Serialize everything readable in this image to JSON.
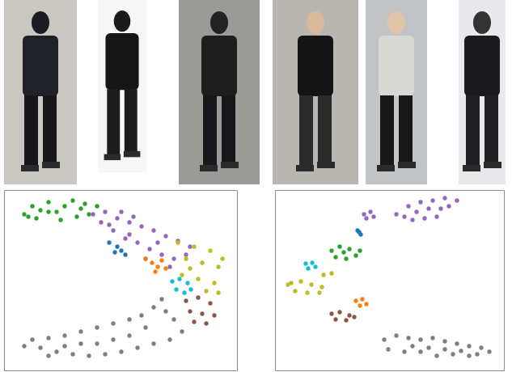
{
  "chart_data": [
    {
      "type": "scatter",
      "xlim": [
        0,
        288
      ],
      "ylim": [
        0,
        223
      ],
      "tick_labels": false,
      "marker": "circle",
      "series": [
        {
          "color": "#2ca02c",
          "x": [
            25,
            35,
            45,
            55,
            65,
            75,
            85,
            95,
            105,
            115,
            40,
            70,
            90,
            55,
            30,
            100
          ],
          "values": [
            193,
            203,
            198,
            208,
            196,
            203,
            210,
            200,
            193,
            203,
            188,
            186,
            190,
            196,
            190,
            206
          ]
        },
        {
          "color": "#9467bd",
          "x": [
            110,
            125,
            140,
            155,
            170,
            185,
            200,
            215,
            230,
            120,
            135,
            150,
            165,
            180,
            195,
            210,
            145,
            160,
            190,
            205,
            175,
            225,
            130,
            155
          ],
          "values": [
            193,
            196,
            188,
            183,
            178,
            173,
            166,
            160,
            153,
            183,
            173,
            163,
            158,
            150,
            143,
            138,
            196,
            190,
            158,
            128,
            138,
            143,
            180,
            168
          ]
        },
        {
          "color": "#1f77b4",
          "x": [
            130,
            140,
            145,
            150,
            137
          ],
          "values": [
            158,
            153,
            148,
            143,
            146
          ]
        },
        {
          "color": "#ff7f0e",
          "x": [
            175,
            183,
            190,
            195,
            187,
            200
          ],
          "values": [
            138,
            133,
            128,
            136,
            122,
            126
          ]
        },
        {
          "color": "#bcbd22",
          "x": [
            215,
            235,
            255,
            225,
            245,
            265,
            220,
            240,
            260,
            270,
            250,
            265,
            230
          ],
          "values": [
            158,
            153,
            148,
            138,
            133,
            128,
            118,
            113,
            108,
            138,
            98,
            96,
            126
          ]
        },
        {
          "color": "#17becf",
          "x": [
            208,
            217,
            227,
            213,
            223,
            231
          ],
          "values": [
            110,
            113,
            108,
            100,
            96,
            100
          ]
        },
        {
          "color": "#8c564b",
          "x": [
            225,
            240,
            255,
            230,
            245,
            260,
            235,
            250
          ],
          "values": [
            86,
            90,
            83,
            73,
            70,
            68,
            60,
            58
          ]
        },
        {
          "color": "#7f7f7f",
          "x": [
            195,
            185,
            170,
            155,
            135,
            115,
            95,
            75,
            55,
            35,
            25,
            45,
            65,
            85,
            105,
            125,
            145,
            165,
            185,
            205,
            220,
            210,
            200,
            115,
            75,
            155,
            95,
            175,
            135,
            55
          ],
          "values": [
            88,
            78,
            68,
            63,
            58,
            53,
            48,
            43,
            40,
            38,
            30,
            28,
            23,
            20,
            18,
            20,
            23,
            28,
            33,
            38,
            48,
            63,
            73,
            33,
            30,
            43,
            33,
            53,
            38,
            18
          ]
        }
      ]
    },
    {
      "type": "scatter",
      "xlim": [
        0,
        283
      ],
      "ylim": [
        0,
        223
      ],
      "tick_labels": false,
      "marker": "circle",
      "series": [
        {
          "color": "#9467bd",
          "x": [
            150,
            165,
            180,
            195,
            210,
            225,
            160,
            175,
            190,
            205,
            185,
            200,
            215,
            170,
            110,
            118,
            122,
            113
          ],
          "values": [
            193,
            203,
            208,
            210,
            213,
            210,
            190,
            196,
            200,
            200,
            188,
            190,
            203,
            186,
            193,
            196,
            190,
            188
          ]
        },
        {
          "color": "#1f77b4",
          "x": [
            102,
            106,
            104
          ],
          "values": [
            173,
            168,
            171
          ]
        },
        {
          "color": "#2ca02c",
          "x": [
            70,
            80,
            92,
            105,
            75,
            88,
            100,
            85
          ],
          "values": [
            148,
            153,
            150,
            148,
            140,
            138,
            142,
            146
          ]
        },
        {
          "color": "#17becf",
          "x": [
            38,
            46,
            41,
            50
          ],
          "values": [
            132,
            133,
            126,
            128
          ]
        },
        {
          "color": "#bcbd22",
          "x": [
            20,
            32,
            45,
            58,
            25,
            40,
            55,
            60,
            70,
            16
          ],
          "values": [
            108,
            110,
            106,
            103,
            98,
            96,
            96,
            118,
            120,
            106
          ]
        },
        {
          "color": "#ff7f0e",
          "x": [
            100,
            108,
            105,
            113
          ],
          "values": [
            86,
            88,
            80,
            82
          ]
        },
        {
          "color": "#8c564b",
          "x": [
            70,
            80,
            92,
            75,
            88,
            98
          ],
          "values": [
            70,
            72,
            68,
            63,
            62,
            66
          ]
        },
        {
          "color": "#7f7f7f",
          "x": [
            135,
            150,
            165,
            180,
            195,
            210,
            225,
            240,
            255,
            265,
            140,
            160,
            180,
            200,
            220,
            240,
            170,
            190,
            210,
            230,
            250
          ],
          "values": [
            38,
            43,
            40,
            38,
            40,
            36,
            33,
            30,
            28,
            23,
            26,
            23,
            23,
            18,
            20,
            18,
            30,
            28,
            26,
            24,
            20
          ]
        }
      ]
    }
  ]
}
